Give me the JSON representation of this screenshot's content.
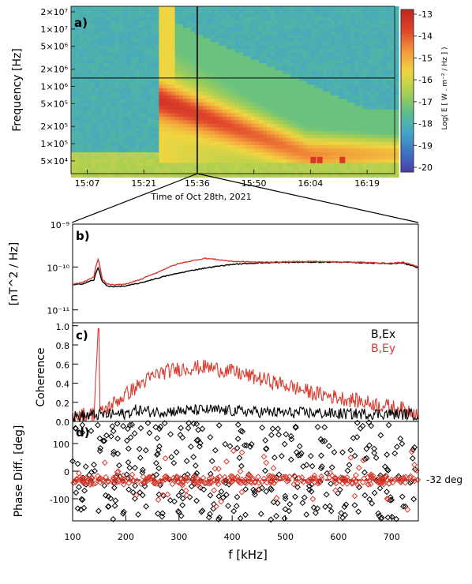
{
  "chart_data": [
    {
      "panel": "a)",
      "type": "heatmap",
      "xlabel": "Time of Oct 28th, 2021",
      "ylabel": "Frequency [Hz]",
      "x_ticks": [
        "15:07",
        "15:21",
        "15:36",
        "15:50",
        "16:04",
        "16:19"
      ],
      "y_ticks": [
        "2×10⁷",
        "1×10⁷",
        "5×10⁶",
        "2×10⁶",
        "1×10⁶",
        "5×10⁵",
        "2×10⁵",
        "1×10⁵",
        "5×10⁴"
      ],
      "y_tick_values": [
        20000000,
        10000000,
        5000000,
        2000000,
        1000000,
        500000,
        200000,
        100000,
        50000
      ],
      "ylim": [
        30000,
        25000000
      ],
      "yscale": "log",
      "colorbar_label": "Log( E [ W . m⁻² / Hz ] )",
      "colorbar_ticks": [
        "-13",
        "-14",
        "-15",
        "-16",
        "-17",
        "-18",
        "-19",
        "-20"
      ],
      "colorbar_range": [
        -20,
        -13
      ],
      "colors": [
        "#4b3aa6",
        "#3f72c2",
        "#43a5c9",
        "#5cbf8a",
        "#a8cf52",
        "#f0d640",
        "#f39a3b",
        "#e0452b",
        "#c0281e"
      ],
      "marker_time": "15:36",
      "marker_frequency_hz": 1400000
    },
    {
      "panel": "b)",
      "type": "line",
      "ylabel": "[nT^2 / Hz]",
      "yscale": "log",
      "ylim": [
        5e-12,
        1e-09
      ],
      "y_ticks": [
        "10⁻⁹",
        "10⁻¹⁰",
        "10⁻¹¹"
      ],
      "xlim": [
        100,
        750
      ],
      "x_units": "kHz",
      "series": [
        {
          "color": "#000000",
          "x": [
            100,
            120,
            140,
            148,
            155,
            165,
            180,
            200,
            230,
            260,
            300,
            350,
            400,
            450,
            500,
            550,
            600,
            650,
            700,
            720,
            735,
            750
          ],
          "y": [
            3.8e-11,
            4.1e-11,
            5e-11,
            9.5e-11,
            4.6e-11,
            3.6e-11,
            3.5e-11,
            3.6e-11,
            4.3e-11,
            5.5e-11,
            7.2e-11,
            9.5e-11,
            1.15e-10,
            1.25e-10,
            1.28e-10,
            1.3e-10,
            1.3e-10,
            1.25e-10,
            1.2e-10,
            1.25e-10,
            1.1e-10,
            9.5e-11
          ]
        },
        {
          "color": "#d83a2e",
          "x": [
            100,
            120,
            140,
            148,
            155,
            165,
            180,
            200,
            230,
            260,
            300,
            350,
            400,
            450,
            500,
            550,
            600,
            650,
            700,
            720,
            735,
            750
          ],
          "y": [
            4e-11,
            4.4e-11,
            5.8e-11,
            1.5e-10,
            5.2e-11,
            4e-11,
            3.8e-11,
            4e-11,
            5.2e-11,
            7.5e-11,
            1.2e-10,
            1.6e-10,
            1.35e-10,
            1.3e-10,
            1.32e-10,
            1.35e-10,
            1.32e-10,
            1.28e-10,
            1.22e-10,
            1.3e-10,
            1.15e-10,
            1e-10
          ]
        }
      ]
    },
    {
      "panel": "c)",
      "type": "line",
      "ylabel": "Coherence",
      "ylim": [
        0,
        1.0
      ],
      "y_ticks": [
        "1.0",
        "0.8",
        "0.6",
        "0.4",
        "0.2",
        "0.0"
      ],
      "xlim": [
        100,
        750
      ],
      "x_units": "kHz",
      "series": [
        {
          "name": "B,Ex",
          "color": "#000000",
          "x": [
            100,
            150,
            200,
            220,
            250,
            300,
            350,
            400,
            450,
            500,
            550,
            600,
            650,
            700,
            750
          ],
          "y": [
            0.05,
            0.07,
            0.08,
            0.12,
            0.1,
            0.11,
            0.12,
            0.11,
            0.1,
            0.09,
            0.09,
            0.08,
            0.08,
            0.08,
            0.07
          ]
        },
        {
          "name": "B,Ey",
          "color": "#d83a2e",
          "x": [
            100,
            140,
            148,
            151,
            160,
            180,
            200,
            230,
            260,
            300,
            350,
            400,
            450,
            500,
            550,
            600,
            650,
            700,
            750
          ],
          "y": [
            0.06,
            0.08,
            0.95,
            0.08,
            0.12,
            0.2,
            0.28,
            0.4,
            0.5,
            0.55,
            0.57,
            0.52,
            0.45,
            0.38,
            0.3,
            0.25,
            0.2,
            0.15,
            0.1
          ]
        }
      ]
    },
    {
      "panel": "d)",
      "type": "scatter",
      "ylabel": "Phase Diff. [deg]",
      "xlabel": "f [kHz]",
      "ylim": [
        -180,
        180
      ],
      "y_ticks": [
        "100",
        "0",
        "-100"
      ],
      "y_tick_values": [
        100,
        0,
        -100
      ],
      "xlim": [
        100,
        750
      ],
      "x_ticks": [
        "100",
        "200",
        "300",
        "400",
        "500",
        "600",
        "700"
      ],
      "x_tick_values": [
        100,
        200,
        300,
        400,
        500,
        600,
        700
      ],
      "reference_line_deg": -32,
      "reference_label": "-32 deg",
      "series": [
        {
          "name": "B,Ex",
          "color": "#000000",
          "distribution": "uniform",
          "range_deg": [
            -180,
            180
          ]
        },
        {
          "name": "B,Ey",
          "color": "#d83a2e",
          "distribution": "clustered",
          "center_deg": -32
        }
      ]
    }
  ]
}
